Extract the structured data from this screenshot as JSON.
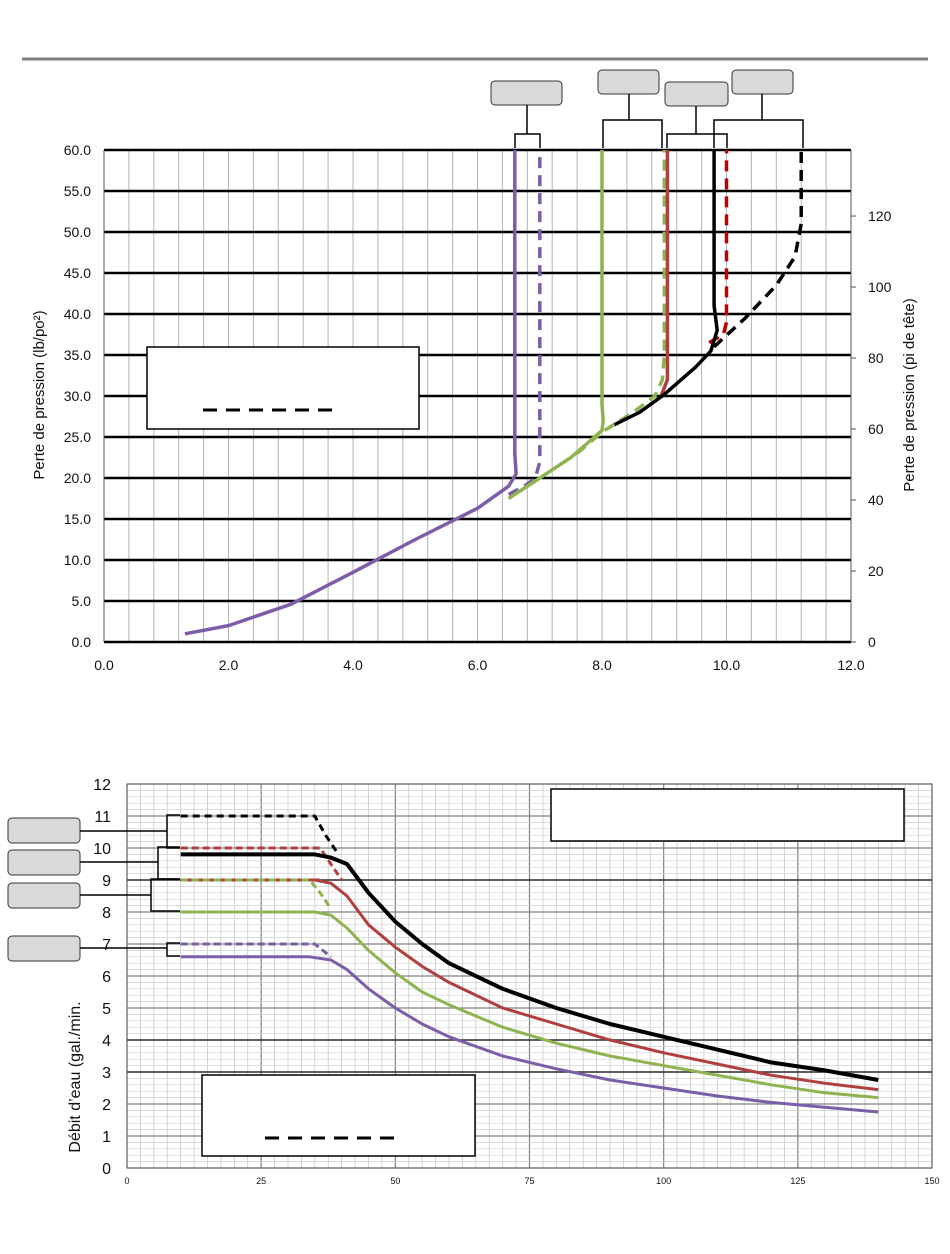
{
  "colors": {
    "purple": "#7b5ea7",
    "green": "#8fb351",
    "red": "#b04040",
    "dark_red": "#c00000",
    "black": "#000000",
    "callout_fill": "#d9d9d9"
  },
  "chart_data": [
    {
      "type": "line",
      "title": "",
      "xlabel": "",
      "ylabel": "Perte de pression (lb/po²)",
      "ylabel_right": "Perte de pression (pi de tête)",
      "xlim": [
        0,
        12
      ],
      "ylim": [
        0,
        60
      ],
      "y2lim": [
        0,
        138.6
      ],
      "x_ticks": [
        "0.0",
        "2.0",
        "4.0",
        "6.0",
        "8.0",
        "10.0",
        "12.0"
      ],
      "y_ticks": [
        "0.0",
        "5.0",
        "10.0",
        "15.0",
        "20.0",
        "25.0",
        "30.0",
        "35.0",
        "40.0",
        "45.0",
        "50.0",
        "55.0",
        "60.0"
      ],
      "y2_ticks": [
        "0",
        "20",
        "40",
        "60",
        "80",
        "100",
        "120"
      ],
      "grid": true,
      "legend": {
        "placement": "center-left",
        "entries": [
          {
            "style": "dashed",
            "label": ""
          }
        ]
      },
      "series": [
        {
          "color": "purple",
          "style": "solid",
          "points": [
            [
              1.3,
              1.0
            ],
            [
              2.0,
              2.0
            ],
            [
              3.0,
              4.6
            ],
            [
              4.0,
              8.5
            ],
            [
              5.0,
              12.5
            ],
            [
              6.0,
              16.3
            ],
            [
              6.5,
              19.0
            ],
            [
              6.62,
              20.5
            ],
            [
              6.6,
              23.0
            ],
            [
              6.6,
              60.0
            ]
          ]
        },
        {
          "color": "purple",
          "style": "dashed",
          "points": [
            [
              6.5,
              18.0
            ],
            [
              6.75,
              19.0
            ],
            [
              6.93,
              20.0
            ],
            [
              7.0,
              22.0
            ],
            [
              7.0,
              60.0
            ]
          ]
        },
        {
          "color": "green",
          "style": "solid",
          "points": [
            [
              6.5,
              17.5
            ],
            [
              7.0,
              20.0
            ],
            [
              7.5,
              22.5
            ],
            [
              8.0,
              25.8
            ],
            [
              8.02,
              27.0
            ],
            [
              8.0,
              29.0
            ],
            [
              8.0,
              60.0
            ]
          ]
        },
        {
          "color": "green",
          "style": "dashed",
          "points": [
            [
              7.6,
              23.0
            ],
            [
              8.0,
              25.6
            ],
            [
              8.5,
              28.0
            ],
            [
              8.85,
              30.0
            ],
            [
              8.97,
              32.0
            ],
            [
              9.0,
              35.0
            ],
            [
              9.0,
              60.0
            ]
          ]
        },
        {
          "color": "red",
          "style": "solid",
          "points": [
            [
              8.95,
              30.0
            ],
            [
              9.05,
              32.0
            ],
            [
              9.05,
              33.5
            ],
            [
              9.05,
              60.0
            ]
          ]
        },
        {
          "color": "dark_red",
          "style": "dashed",
          "points": [
            [
              9.72,
              36.5
            ],
            [
              9.95,
              37.5
            ],
            [
              10.0,
              39.0
            ],
            [
              10.0,
              60.0
            ]
          ]
        },
        {
          "color": "black",
          "style": "solid",
          "points": [
            [
              8.2,
              26.5
            ],
            [
              8.6,
              28.0
            ],
            [
              9.0,
              30.2
            ],
            [
              9.5,
              33.5
            ],
            [
              9.75,
              35.5
            ],
            [
              9.85,
              38.0
            ],
            [
              9.8,
              41.0
            ],
            [
              9.8,
              60.0
            ]
          ]
        },
        {
          "color": "black",
          "style": "dashed",
          "points": [
            [
              9.8,
              36.0
            ],
            [
              10.3,
              39.5
            ],
            [
              10.8,
              43.5
            ],
            [
              11.1,
              47.0
            ],
            [
              11.2,
              51.0
            ],
            [
              11.2,
              55.0
            ],
            [
              11.2,
              60.0
            ]
          ]
        }
      ]
    },
    {
      "type": "line",
      "title": "",
      "xlabel": "",
      "ylabel": "Débit d’eau (gal./min.",
      "xlim": [
        0,
        150
      ],
      "ylim": [
        0,
        12
      ],
      "x_ticks": [
        "0",
        "25",
        "50",
        "75",
        "100",
        "125",
        "150"
      ],
      "y_ticks": [
        "0",
        "1",
        "2",
        "3",
        "4",
        "5",
        "6",
        "7",
        "8",
        "9",
        "10",
        "11",
        "12"
      ],
      "grid": true,
      "legend": {
        "placement": "bottom-left",
        "entries": [
          {
            "style": "dashed",
            "label": ""
          }
        ]
      },
      "series": [
        {
          "color": "black",
          "style": "dashed",
          "points": [
            [
              10,
              11.0
            ],
            [
              35,
              11.0
            ],
            [
              37,
              10.4
            ],
            [
              39,
              9.9
            ]
          ]
        },
        {
          "color": "red",
          "style": "dashed",
          "points": [
            [
              10,
              10.0
            ],
            [
              36,
              10.0
            ],
            [
              38,
              9.5
            ],
            [
              40,
              9.0
            ]
          ]
        },
        {
          "color": "black",
          "style": "solid",
          "points": [
            [
              10,
              9.8
            ],
            [
              35,
              9.8
            ],
            [
              38,
              9.7
            ],
            [
              41,
              9.5
            ],
            [
              45,
              8.6
            ],
            [
              50,
              7.7
            ],
            [
              55,
              7.0
            ],
            [
              60,
              6.4
            ],
            [
              70,
              5.6
            ],
            [
              80,
              5.0
            ],
            [
              90,
              4.5
            ],
            [
              100,
              4.1
            ],
            [
              110,
              3.7
            ],
            [
              120,
              3.3
            ],
            [
              130,
              3.05
            ],
            [
              140,
              2.75
            ]
          ]
        },
        {
          "color": "red",
          "style": "dashed",
          "points": [
            [
              10,
              9.0
            ],
            [
              36,
              9.0
            ]
          ]
        },
        {
          "color": "red",
          "style": "solid",
          "points": [
            [
              10,
              9.0
            ],
            [
              35,
              9.0
            ],
            [
              38,
              8.9
            ],
            [
              41,
              8.5
            ],
            [
              45,
              7.6
            ],
            [
              50,
              6.9
            ],
            [
              55,
              6.3
            ],
            [
              60,
              5.8
            ],
            [
              70,
              5.0
            ],
            [
              80,
              4.5
            ],
            [
              90,
              4.0
            ],
            [
              100,
              3.6
            ],
            [
              110,
              3.25
            ],
            [
              120,
              2.9
            ],
            [
              130,
              2.65
            ],
            [
              140,
              2.45
            ]
          ]
        },
        {
          "color": "green",
          "style": "dashed",
          "points": [
            [
              10,
              9.0
            ],
            [
              34,
              9.0
            ],
            [
              36,
              8.6
            ],
            [
              38,
              8.1
            ]
          ]
        },
        {
          "color": "green",
          "style": "solid",
          "points": [
            [
              10,
              8.0
            ],
            [
              35,
              8.0
            ],
            [
              38,
              7.9
            ],
            [
              41,
              7.5
            ],
            [
              45,
              6.8
            ],
            [
              50,
              6.1
            ],
            [
              55,
              5.5
            ],
            [
              60,
              5.1
            ],
            [
              70,
              4.4
            ],
            [
              80,
              3.9
            ],
            [
              90,
              3.5
            ],
            [
              100,
              3.2
            ],
            [
              110,
              2.9
            ],
            [
              120,
              2.6
            ],
            [
              130,
              2.35
            ],
            [
              140,
              2.2
            ]
          ]
        },
        {
          "color": "purple",
          "style": "dashed",
          "points": [
            [
              10,
              7.0
            ],
            [
              35,
              7.0
            ],
            [
              38,
              6.6
            ]
          ]
        },
        {
          "color": "purple",
          "style": "solid",
          "points": [
            [
              10,
              6.6
            ],
            [
              34,
              6.6
            ],
            [
              38,
              6.5
            ],
            [
              41,
              6.2
            ],
            [
              45,
              5.6
            ],
            [
              50,
              5.0
            ],
            [
              55,
              4.5
            ],
            [
              60,
              4.1
            ],
            [
              70,
              3.5
            ],
            [
              80,
              3.1
            ],
            [
              90,
              2.75
            ],
            [
              100,
              2.5
            ],
            [
              110,
              2.25
            ],
            [
              120,
              2.05
            ],
            [
              130,
              1.9
            ],
            [
              140,
              1.75
            ]
          ]
        }
      ]
    }
  ]
}
